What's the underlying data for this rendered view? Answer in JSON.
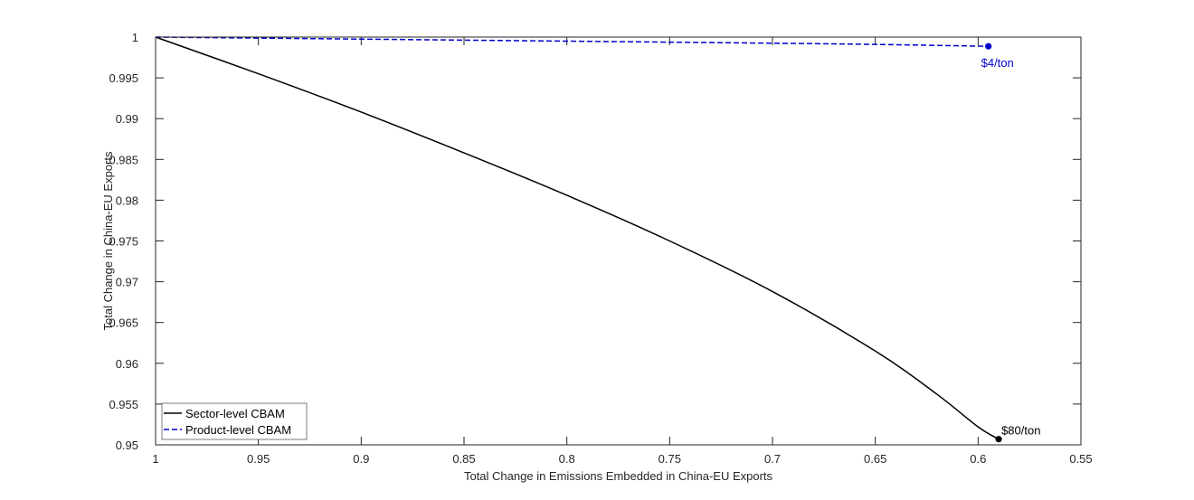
{
  "chart_data": {
    "type": "line",
    "title": "",
    "xlabel": "Total Change in Emissions Embedded in China-EU Exports",
    "ylabel": "Total Change in China-EU Exports",
    "xlim": [
      1,
      0.55
    ],
    "ylim": [
      0.95,
      1
    ],
    "x_reversed": true,
    "grid": false,
    "x_ticks": [
      1,
      0.95,
      0.9,
      0.85,
      0.8,
      0.75,
      0.7,
      0.65,
      0.6,
      0.55
    ],
    "x_tick_labels": [
      "1",
      "0.95",
      "0.9",
      "0.85",
      "0.8",
      "0.75",
      "0.7",
      "0.65",
      "0.6",
      "0.55"
    ],
    "y_ticks": [
      0.95,
      0.955,
      0.96,
      0.965,
      0.97,
      0.975,
      0.98,
      0.985,
      0.99,
      0.995,
      1
    ],
    "y_tick_labels": [
      "0.95",
      "0.955",
      "0.96",
      "0.965",
      "0.97",
      "0.975",
      "0.98",
      "0.985",
      "0.99",
      "0.995",
      "1"
    ],
    "legend_position": "bottom-left",
    "series": [
      {
        "name": "Sector-level CBAM",
        "color": "#000000",
        "style": "solid",
        "x": [
          1,
          0.95,
          0.9,
          0.85,
          0.8,
          0.75,
          0.7,
          0.65,
          0.62,
          0.6,
          0.59
        ],
        "y": [
          1,
          0.9955,
          0.9908,
          0.9858,
          0.9806,
          0.975,
          0.9688,
          0.9615,
          0.9562,
          0.9522,
          0.9507
        ],
        "endpoint": {
          "x": 0.59,
          "y": 0.9507,
          "label": "$80/ton"
        }
      },
      {
        "name": "Product-level CBAM",
        "color": "#0000cc",
        "style": "dashed",
        "x": [
          1,
          0.9,
          0.8,
          0.7,
          0.65,
          0.595
        ],
        "y": [
          1,
          0.99975,
          0.9995,
          0.99925,
          0.9991,
          0.99887
        ],
        "endpoint": {
          "x": 0.595,
          "y": 0.99887,
          "label": "$4/ton"
        }
      }
    ]
  }
}
